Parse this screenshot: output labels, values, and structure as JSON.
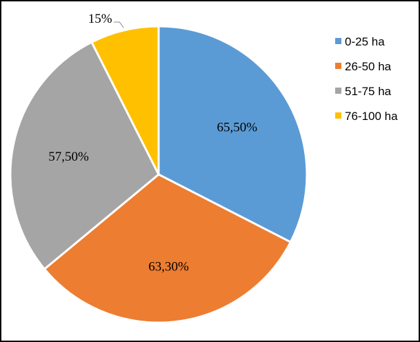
{
  "chart_data": {
    "type": "pie",
    "title": "",
    "categories": [
      "0-25 ha",
      "26-50 ha",
      "51-75 ha",
      "76-100 ha"
    ],
    "values": [
      65.5,
      63.3,
      57.5,
      15
    ],
    "labels": [
      "65,50%",
      "63,30%",
      "57,50%",
      "15%"
    ],
    "colors": [
      "#5B9BD5",
      "#ED7D31",
      "#A5A5A5",
      "#FFC000"
    ],
    "legend_position": "right"
  }
}
